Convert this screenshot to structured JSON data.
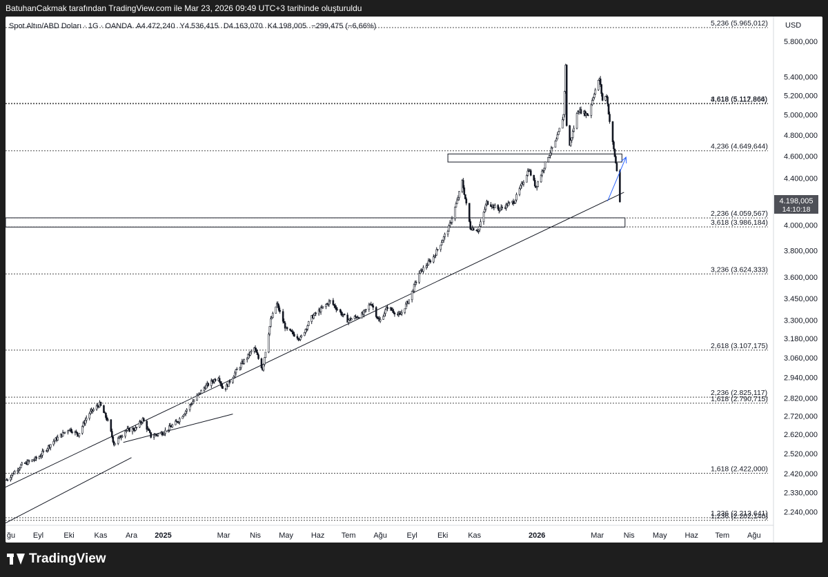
{
  "header": {
    "attribution": "BatuhanCakmak tarafından TradingView.com ile Mar 23, 2026 09:49 UTC+3 tarihinde oluşturuldu"
  },
  "legend": {
    "symbol": "Spot Altın/ABD Doları · 1G · OANDA",
    "o_label": "A",
    "o_value": "4.472,240",
    "h_label": "Y",
    "h_value": "4.536,415",
    "l_label": "D",
    "l_value": "4.163,070",
    "c_label": "K",
    "c_value": "4.198,005",
    "change": "−299,475 (−6,66%)"
  },
  "footer": {
    "logo_text": "TradingView",
    "logo_icon": "tradingview-logo-icon"
  },
  "colors": {
    "accent": "#2962ff",
    "price_badge": "#4e5057",
    "candle": "#131722",
    "grid_line": "#4a4a4a"
  },
  "chart_data": {
    "type": "candlestick",
    "currency_label": "USD",
    "y_scale": "log",
    "ylim": [
      2180,
      6100
    ],
    "y_ticks": [
      "5.800,000",
      "5.400,000",
      "5.200,000",
      "5.000,000",
      "4.800,000",
      "4.600,000",
      "4.400,000",
      "4.200,000",
      "4.000,000",
      "3.800,000",
      "3.600,000",
      "3.450,000",
      "3.300,000",
      "3.180,000",
      "3.060,000",
      "2.940,000",
      "2.820,000",
      "2.720,000",
      "2.620,000",
      "2.520,000",
      "2.420,000",
      "2.330,000",
      "2.240,000"
    ],
    "y_tick_values": [
      5800,
      5400,
      5200,
      5000,
      4800,
      4600,
      4400,
      4200,
      4000,
      3800,
      3600,
      3450,
      3300,
      3180,
      3060,
      2940,
      2820,
      2720,
      2620,
      2520,
      2420,
      2330,
      2240
    ],
    "x_ticks": [
      "ğu",
      "Eyl",
      "Eki",
      "Kas",
      "Ara",
      "2025",
      "Mar",
      "Nis",
      "May",
      "Haz",
      "Tem",
      "Ağu",
      "Eyl",
      "Eki",
      "Kas",
      "2026",
      "Mar",
      "Nis",
      "May",
      "Haz",
      "Tem",
      "Ağu"
    ],
    "x_tick_dates": [
      "2024-08-01",
      "2024-09-01",
      "2024-10-01",
      "2024-11-01",
      "2024-12-01",
      "2025-01-01",
      "2025-03-01",
      "2025-04-01",
      "2025-05-01",
      "2025-06-01",
      "2025-07-01",
      "2025-08-01",
      "2025-09-01",
      "2025-10-01",
      "2025-11-01",
      "2026-01-01",
      "2026-03-01",
      "2026-04-01",
      "2026-05-01",
      "2026-06-01",
      "2026-07-01",
      "2026-08-01"
    ],
    "x_tick_bold": [
      "2025",
      "2026"
    ],
    "xlim": [
      "2024-07-31",
      "2026-08-20"
    ],
    "last_price": {
      "label": "4.198,005",
      "countdown": "14:10:18",
      "value": 4198.005
    },
    "fib_levels": [
      {
        "label": "5,236 (5.965,012)",
        "value": 5965.012
      },
      {
        "label": "4,618 (5.117,866)",
        "value": 5117.866
      },
      {
        "label": "3,618 (5.112,864)",
        "value": 5112.864
      },
      {
        "label": "4,236 (4.649,644)",
        "value": 4649.644
      },
      {
        "label": "2,236 (4.059,567)",
        "value": 4059.567
      },
      {
        "label": "3,618 (3.986,184)",
        "value": 3986.184
      },
      {
        "label": "3,236 (3.624,333)",
        "value": 3624.333
      },
      {
        "label": "2,618 (3.107,175)",
        "value": 3107.175
      },
      {
        "label": "2,236 (2.825,117)",
        "value": 2825.117
      },
      {
        "label": "1,618 (2.790,715)",
        "value": 2790.715
      },
      {
        "label": "1,618 (2.422,000)",
        "value": 2422.0
      },
      {
        "label": "1,236 (2.213,641)",
        "value": 2213.641
      },
      {
        "label": "1,236 (2.202,140)",
        "value": 2202.14
      }
    ],
    "zones": [
      {
        "from": "2024-07-31",
        "to": "2026-03-28",
        "low": 3985,
        "high": 4060
      },
      {
        "from": "2025-10-06",
        "to": "2026-03-25",
        "low": 4545,
        "high": 4620
      }
    ],
    "trendlines": [
      {
        "from": [
          "2024-07-31",
          2355
        ],
        "to": [
          "2026-03-27",
          4275
        ]
      },
      {
        "from": [
          "2024-07-31",
          2190
        ],
        "to": [
          "2024-12-01",
          2500
        ]
      },
      {
        "from": [
          "2024-11-23",
          2578
        ],
        "to": [
          "2025-03-10",
          2730
        ]
      }
    ],
    "arrow": {
      "from": [
        "2026-03-11",
        4200
      ],
      "to": [
        "2026-03-29",
        4590
      ]
    },
    "path_points": [
      [
        "2024-08-01",
        2390
      ],
      [
        "2024-08-15",
        2460
      ],
      [
        "2024-09-01",
        2500
      ],
      [
        "2024-09-15",
        2580
      ],
      [
        "2024-10-01",
        2650
      ],
      [
        "2024-10-10",
        2620
      ],
      [
        "2024-10-20",
        2730
      ],
      [
        "2024-10-31",
        2785
      ],
      [
        "2024-11-08",
        2690
      ],
      [
        "2024-11-14",
        2570
      ],
      [
        "2024-11-25",
        2640
      ],
      [
        "2024-12-05",
        2650
      ],
      [
        "2024-12-12",
        2700
      ],
      [
        "2024-12-20",
        2610
      ],
      [
        "2025-01-01",
        2630
      ],
      [
        "2025-01-15",
        2690
      ],
      [
        "2025-01-30",
        2800
      ],
      [
        "2025-02-10",
        2880
      ],
      [
        "2025-02-24",
        2945
      ],
      [
        "2025-03-01",
        2860
      ],
      [
        "2025-03-14",
        2985
      ],
      [
        "2025-03-31",
        3120
      ],
      [
        "2025-04-08",
        2990
      ],
      [
        "2025-04-16",
        3300
      ],
      [
        "2025-04-22",
        3410
      ],
      [
        "2025-05-01",
        3240
      ],
      [
        "2025-05-15",
        3180
      ],
      [
        "2025-05-26",
        3320
      ],
      [
        "2025-06-05",
        3380
      ],
      [
        "2025-06-13",
        3430
      ],
      [
        "2025-06-30",
        3300
      ],
      [
        "2025-07-15",
        3340
      ],
      [
        "2025-07-23",
        3420
      ],
      [
        "2025-07-31",
        3290
      ],
      [
        "2025-08-08",
        3390
      ],
      [
        "2025-08-20",
        3330
      ],
      [
        "2025-08-29",
        3440
      ],
      [
        "2025-09-08",
        3630
      ],
      [
        "2025-09-22",
        3750
      ],
      [
        "2025-10-07",
        3980
      ],
      [
        "2025-10-15",
        4200
      ],
      [
        "2025-10-20",
        4370
      ],
      [
        "2025-10-28",
        3980
      ],
      [
        "2025-11-05",
        3960
      ],
      [
        "2025-11-13",
        4190
      ],
      [
        "2025-11-25",
        4130
      ],
      [
        "2025-12-10",
        4200
      ],
      [
        "2025-12-24",
        4480
      ],
      [
        "2025-12-31",
        4320
      ],
      [
        "2026-01-12",
        4600
      ],
      [
        "2026-01-20",
        4750
      ],
      [
        "2026-01-27",
        5000
      ],
      [
        "2026-01-29",
        5520
      ],
      [
        "2026-01-30",
        4900
      ],
      [
        "2026-02-02",
        4700
      ],
      [
        "2026-02-10",
        5050
      ],
      [
        "2026-02-20",
        5000
      ],
      [
        "2026-02-26",
        5230
      ],
      [
        "2026-03-03",
        5380
      ],
      [
        "2026-03-06",
        5150
      ],
      [
        "2026-03-10",
        5200
      ],
      [
        "2026-03-14",
        4850
      ],
      [
        "2026-03-18",
        4600
      ],
      [
        "2026-03-20",
        4470
      ],
      [
        "2026-03-23",
        4198
      ]
    ]
  }
}
